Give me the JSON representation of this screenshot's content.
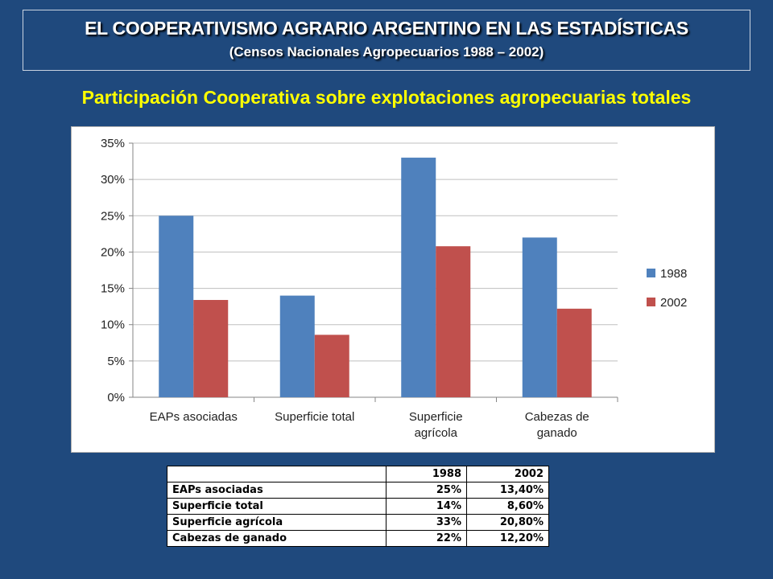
{
  "header": {
    "title": "EL COOPERATIVISMO AGRARIO ARGENTINO  EN  LAS ESTADÍSTICAS",
    "subtitle": "(Censos Nacionales Agropecuarios 1988 – 2002)"
  },
  "heading": "Participación Cooperativa  sobre explotaciones agropecuarias totales",
  "chart_data": {
    "type": "bar",
    "categories": [
      [
        "EAPs asociadas"
      ],
      [
        "Superficie total"
      ],
      [
        "Superficie",
        "agrícola"
      ],
      [
        "Cabezas de",
        "ganado"
      ]
    ],
    "series": [
      {
        "name": "1988",
        "values": [
          25,
          14,
          33,
          22
        ],
        "color": "#4f81bd"
      },
      {
        "name": "2002",
        "values": [
          13.4,
          8.6,
          20.8,
          12.2
        ],
        "color": "#c0504d"
      }
    ],
    "yticks": [
      "0%",
      "5%",
      "10%",
      "15%",
      "20%",
      "25%",
      "30%",
      "35%"
    ],
    "ylim": [
      0,
      35
    ],
    "grid": true,
    "legend": "right"
  },
  "table": {
    "header": [
      "",
      "1988",
      "2002"
    ],
    "rows": [
      [
        "EAPs asociadas",
        "25%",
        "13,40%"
      ],
      [
        "Superficie total",
        "14%",
        "8,60%"
      ],
      [
        "Superficie agrícola",
        "33%",
        "20,80%"
      ],
      [
        "Cabezas de ganado",
        "22%",
        "12,20%"
      ]
    ]
  }
}
